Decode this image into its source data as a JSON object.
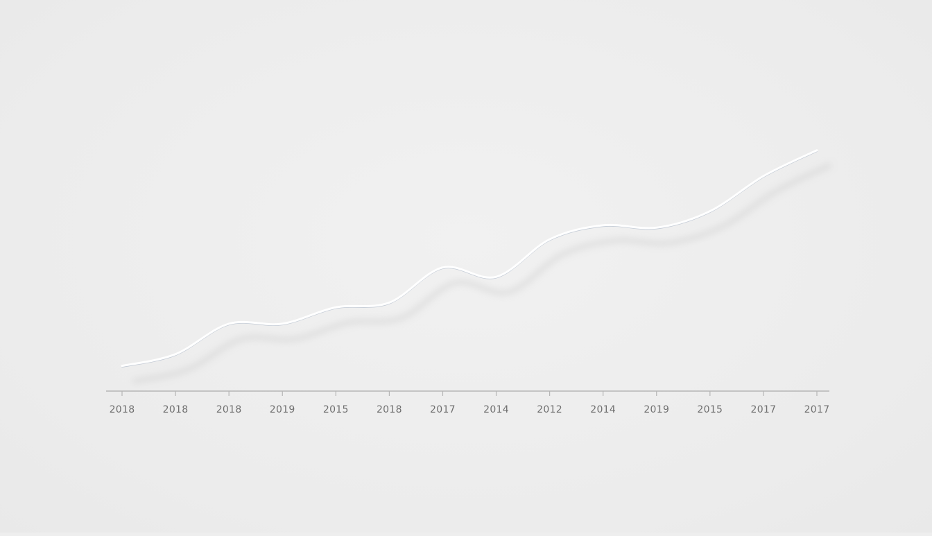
{
  "colors": {
    "background": "#eeeeee",
    "line": "#ffffff",
    "shadow": "#c9c9c9",
    "accent": "#6f87a6",
    "axis": "#b5b5b5",
    "tick_label": "#6f6f6f"
  },
  "chart_data": {
    "type": "line",
    "title": "",
    "xlabel": "",
    "ylabel": "",
    "grid": false,
    "legend": "none",
    "categories": [
      "2018",
      "2018",
      "2018",
      "2019",
      "2015",
      "2018",
      "2017",
      "2014",
      "2012",
      "2014",
      "2019",
      "2015",
      "2017",
      "2017"
    ],
    "ylim": [
      0,
      100
    ],
    "series": [
      {
        "values": [
          6,
          11,
          24,
          24,
          31,
          33,
          48,
          44,
          60,
          66,
          65,
          72,
          87,
          98
        ]
      }
    ]
  }
}
